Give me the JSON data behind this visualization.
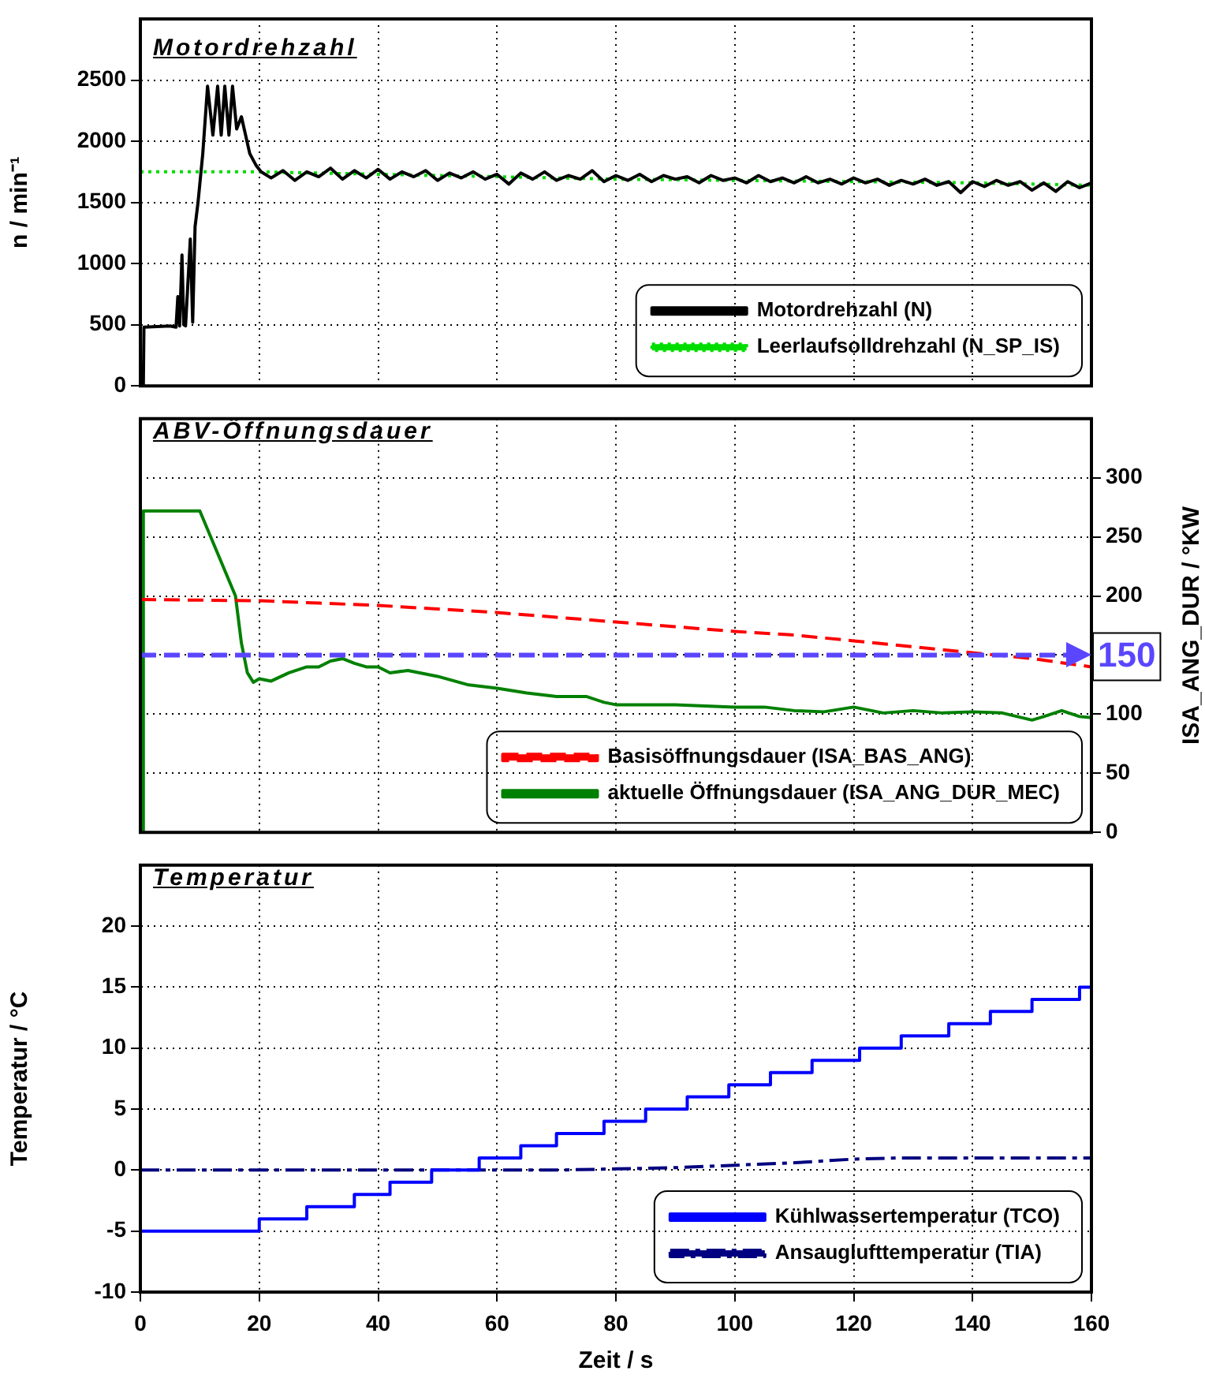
{
  "chart_data": [
    {
      "type": "line",
      "title": "Motordrehzahl",
      "ylabel": "n / min⁻¹",
      "xlim": [
        0,
        160
      ],
      "xticks": [
        0,
        20,
        40,
        60,
        80,
        100,
        120,
        140,
        160
      ],
      "ylim": [
        0,
        3000
      ],
      "yticks": [
        0,
        500,
        1000,
        1500,
        2000,
        2500
      ],
      "grid": true,
      "legend": "bottom right",
      "marker": "none",
      "tick_labels": "y",
      "series": [
        {
          "name": "Motordrehzahl (N)",
          "color": "#000000",
          "line_style": "solid",
          "x": [
            0,
            0.5,
            0.6,
            5,
            6,
            6.3,
            6.6,
            7,
            7.3,
            7.6,
            8.4,
            8.8,
            9.2,
            9.7,
            10.5,
            11.3,
            12.2,
            13,
            13.6,
            14.2,
            14.9,
            15.5,
            16.2,
            17,
            18.4,
            19.5,
            20.3,
            22,
            24,
            26,
            28,
            30,
            32,
            34,
            36,
            38,
            40,
            42,
            44,
            46,
            48,
            50,
            52,
            54,
            56,
            58,
            60,
            62,
            64,
            66,
            68,
            70,
            72,
            74,
            76,
            78,
            80,
            82,
            84,
            86,
            88,
            90,
            92,
            94,
            96,
            98,
            100,
            102,
            104,
            106,
            108,
            110,
            112,
            114,
            116,
            118,
            120,
            122,
            124,
            126,
            128,
            130,
            132,
            134,
            136,
            138,
            140,
            142,
            144,
            146,
            148,
            150,
            152,
            154,
            156,
            158,
            160
          ],
          "values": [
            0,
            0,
            480,
            490,
            480,
            730,
            490,
            1070,
            500,
            490,
            1200,
            520,
            1300,
            1500,
            1900,
            2450,
            2050,
            2450,
            2050,
            2450,
            2050,
            2450,
            2100,
            2200,
            1900,
            1800,
            1750,
            1700,
            1760,
            1680,
            1750,
            1710,
            1780,
            1690,
            1760,
            1700,
            1770,
            1690,
            1750,
            1710,
            1760,
            1680,
            1740,
            1700,
            1750,
            1690,
            1730,
            1650,
            1740,
            1690,
            1750,
            1680,
            1720,
            1690,
            1760,
            1670,
            1720,
            1680,
            1730,
            1670,
            1720,
            1690,
            1710,
            1660,
            1720,
            1680,
            1700,
            1660,
            1720,
            1670,
            1700,
            1660,
            1710,
            1660,
            1690,
            1650,
            1700,
            1660,
            1690,
            1640,
            1680,
            1650,
            1690,
            1640,
            1670,
            1580,
            1670,
            1630,
            1680,
            1640,
            1670,
            1600,
            1660,
            1590,
            1670,
            1620,
            1660
          ]
        },
        {
          "name": "Leerlaufsolldrehzahl (N_SP_IS)",
          "color": "#00dd00",
          "line_style": "dotted",
          "x": [
            0,
            20,
            40,
            60,
            80,
            100,
            120,
            140,
            160
          ],
          "values": [
            1750,
            1750,
            1730,
            1710,
            1690,
            1680,
            1670,
            1660,
            1640
          ]
        }
      ]
    },
    {
      "type": "line",
      "title": "ABV-Öffnungsdauer",
      "ylabel": "ISA_ANG_DUR / °KW",
      "xlim": [
        0,
        160
      ],
      "xticks": [
        0,
        20,
        40,
        60,
        80,
        100,
        120,
        140,
        160
      ],
      "ylim": [
        0,
        350
      ],
      "yticks": [
        0,
        50,
        100,
        {
          "value": 150,
          "label": null
        },
        200,
        250,
        300
      ],
      "grid": true,
      "legend": "bottom right",
      "marker": "none",
      "tick_labels": "y",
      "ref_lines": [
        {
          "axis": "y",
          "value": 150,
          "label": "150",
          "color": "#5a46ff",
          "line_style": "dashed"
        }
      ],
      "series": [
        {
          "name": "Basisöffnungsdauer (ISA_BAS_ANG)",
          "color": "#ff0000",
          "line_style": "dashed",
          "x": [
            0,
            20,
            30,
            40,
            50,
            60,
            70,
            80,
            90,
            100,
            110,
            120,
            130,
            140,
            150,
            160
          ],
          "values": [
            197,
            196,
            194,
            192,
            189,
            186,
            182,
            178,
            174,
            170,
            167,
            162,
            157,
            152,
            147,
            140
          ]
        },
        {
          "name": "aktuelle Öffnungsdauer (ISA_ANG_DUR_MEC)",
          "color": "#008000",
          "line_style": "solid",
          "x": [
            0,
            0.3,
            0.5,
            10,
            16,
            17,
            18,
            19,
            20,
            22,
            25,
            28,
            30,
            32,
            34,
            36,
            38,
            40,
            42,
            45,
            48,
            50,
            55,
            60,
            65,
            70,
            75,
            78,
            80,
            85,
            90,
            95,
            100,
            105,
            110,
            115,
            120,
            125,
            130,
            135,
            140,
            145,
            150,
            152,
            155,
            158,
            160
          ],
          "values": [
            0,
            0,
            272,
            272,
            200,
            160,
            135,
            127,
            130,
            128,
            135,
            140,
            140,
            145,
            147,
            143,
            140,
            140,
            135,
            137,
            134,
            132,
            125,
            122,
            118,
            115,
            115,
            110,
            108,
            108,
            108,
            107,
            106,
            106,
            103,
            102,
            106,
            101,
            103,
            101,
            102,
            101,
            95,
            98,
            103,
            98,
            97
          ]
        }
      ]
    },
    {
      "type": "line",
      "title": "Temperatur",
      "xlabel": "Zeit / s",
      "ylabel": "Temperatur / °C",
      "xlim": [
        0,
        160
      ],
      "xticks": [
        0,
        20,
        40,
        60,
        80,
        100,
        120,
        140,
        160
      ],
      "ylim": [
        -10,
        25
      ],
      "yticks": [
        -10,
        -5,
        0,
        5,
        10,
        15,
        20
      ],
      "grid": true,
      "legend": "bottom right",
      "marker": "none",
      "series": [
        {
          "name": "Kühlwassertemperatur (TCO)",
          "type": "step",
          "color": "#0000ff",
          "line_style": "solid",
          "x": [
            0,
            20,
            28,
            36,
            42,
            49,
            57,
            64,
            70,
            78,
            85,
            92,
            99,
            106,
            113,
            121,
            128,
            136,
            143,
            150,
            158,
            160
          ],
          "values": [
            -5,
            -4,
            -3,
            -2,
            -1,
            0,
            1,
            2,
            3,
            4,
            5,
            6,
            7,
            8,
            9,
            10,
            11,
            12,
            13,
            14,
            15,
            15
          ]
        },
        {
          "name": "Ansauglufttemperatur (TIA)",
          "color": "#000080",
          "line_style": "dashdot",
          "x": [
            0,
            60,
            70,
            80,
            90,
            100,
            110,
            120,
            128,
            160
          ],
          "values": [
            0,
            0,
            0,
            0.1,
            0.2,
            0.4,
            0.6,
            0.9,
            1,
            1
          ]
        }
      ]
    }
  ]
}
